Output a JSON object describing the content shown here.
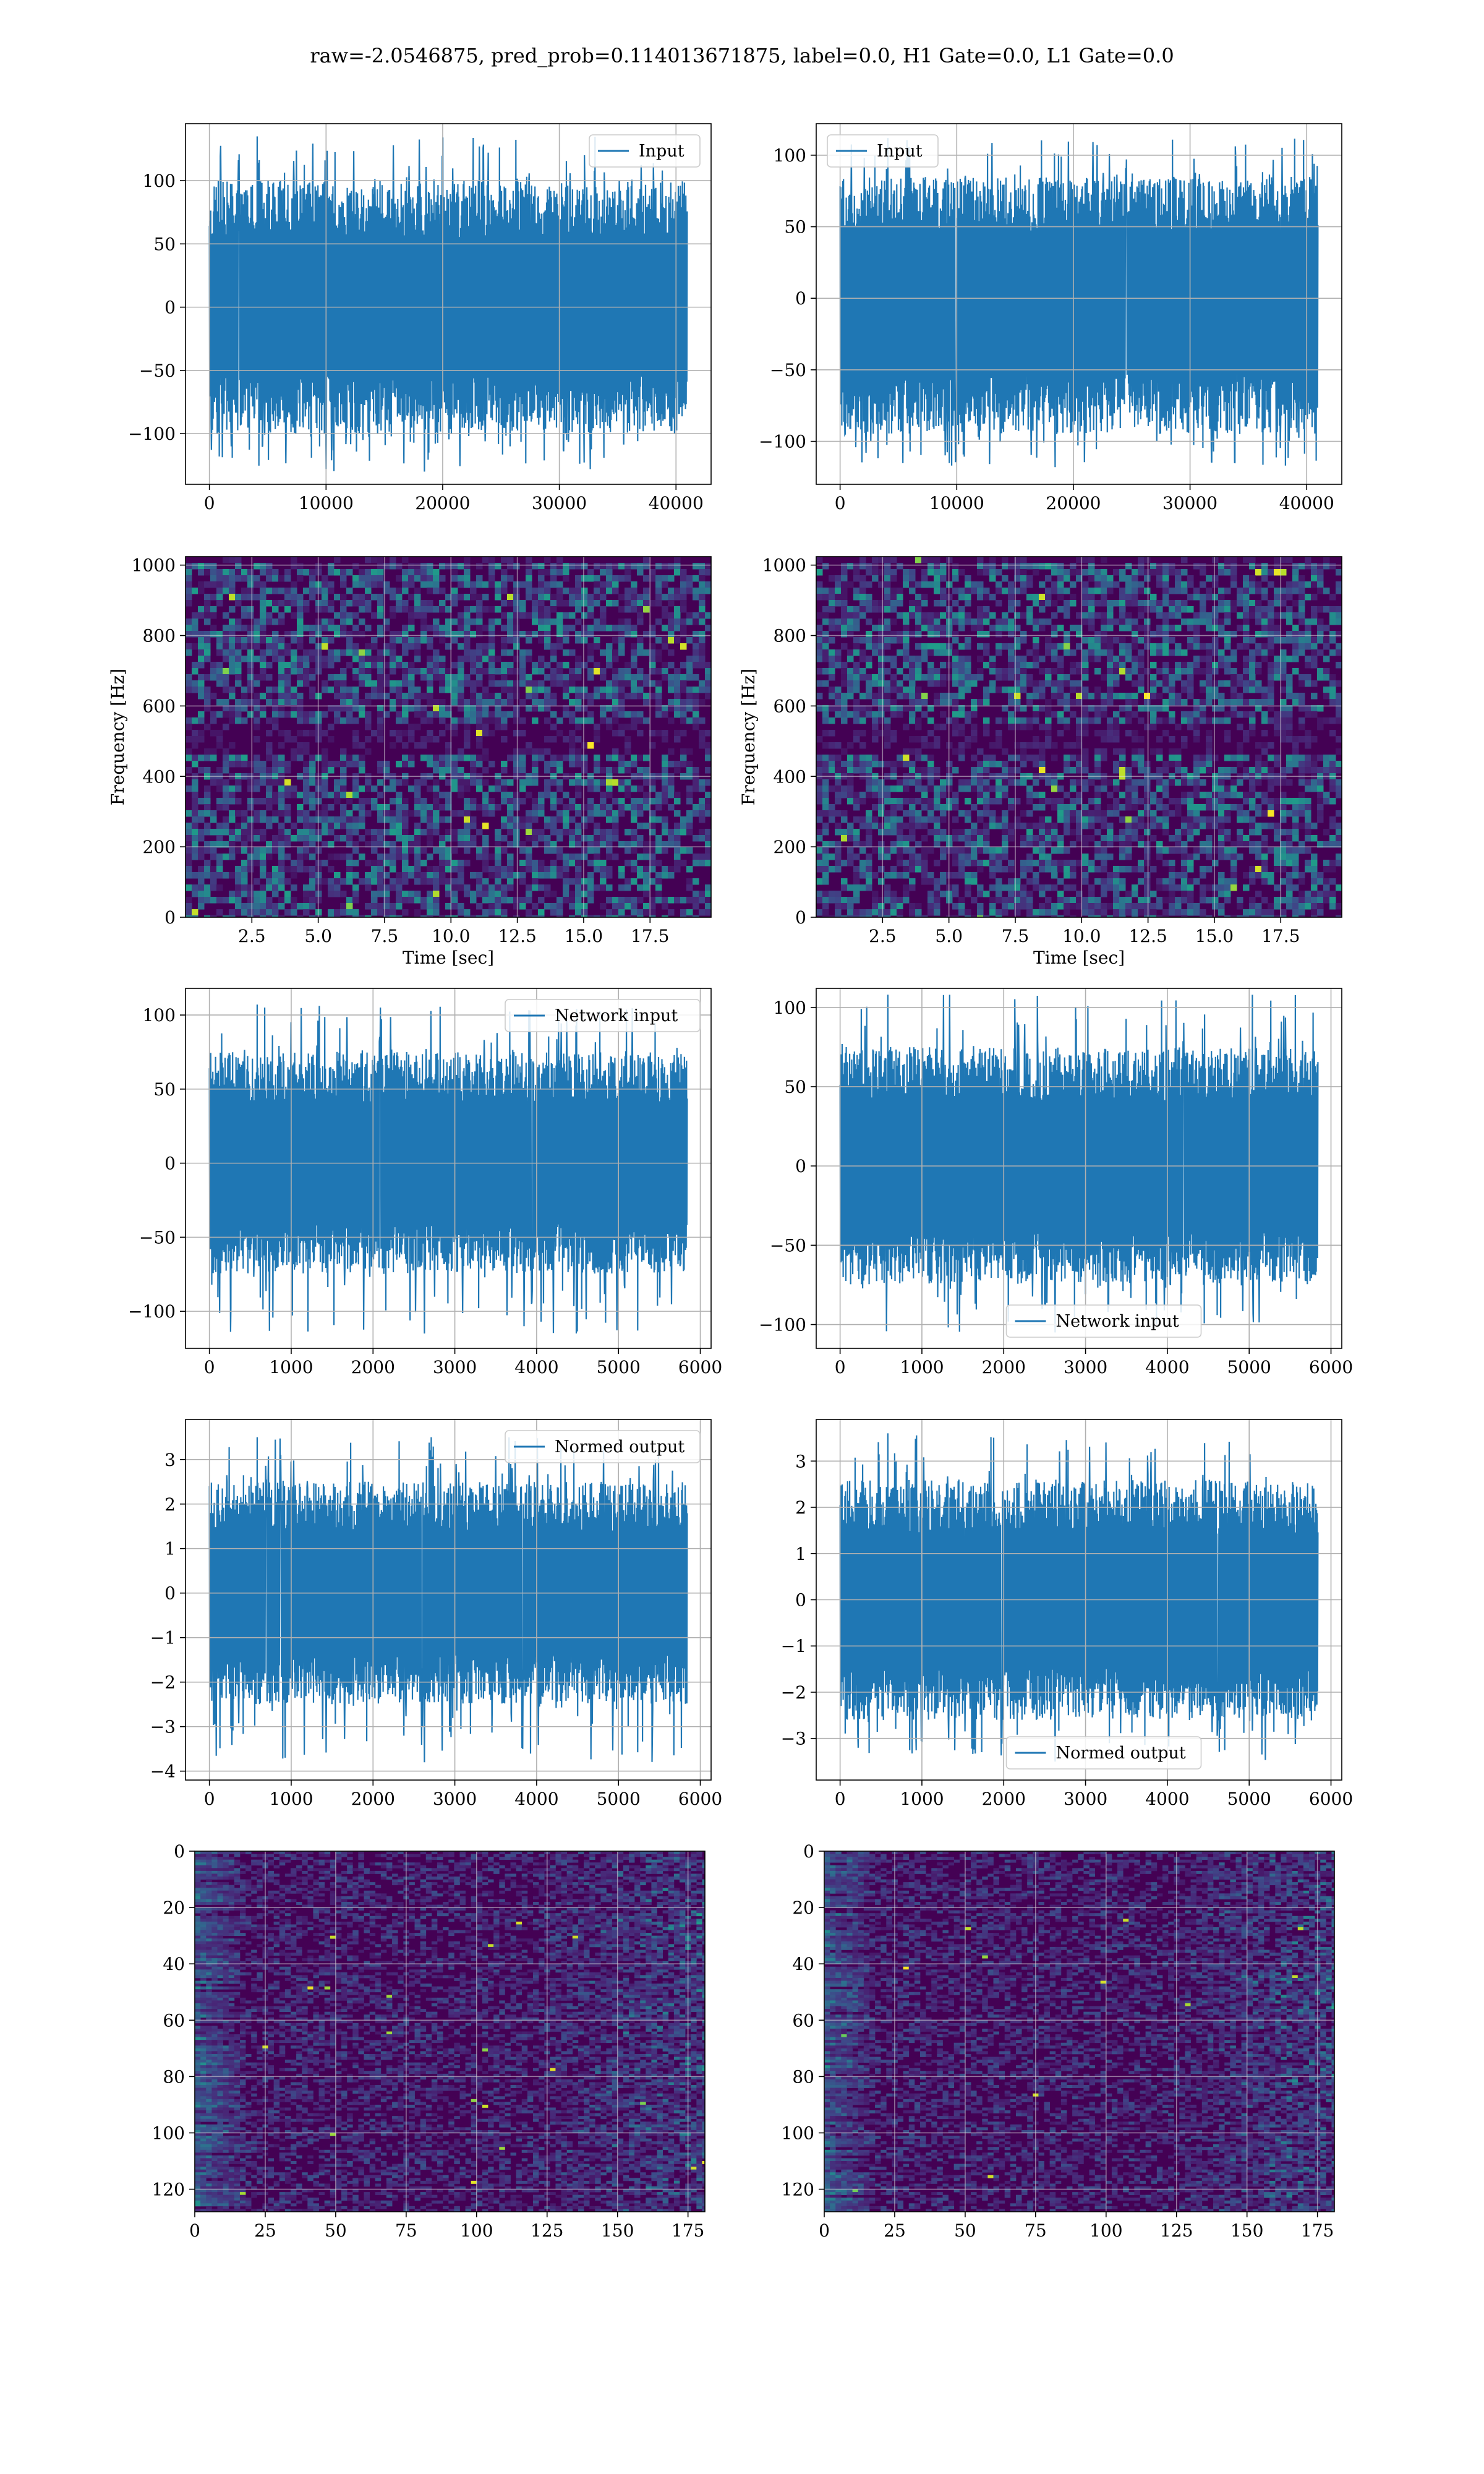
{
  "figure": {
    "suptitle": "raw=-2.0546875, pred_prob=0.114013671875, label=0.0, H1 Gate=0.0, L1 Gate=0.0"
  },
  "colors": {
    "series": "#1f77b4",
    "grid": "#b0b0b0",
    "viridis": [
      "#440154",
      "#482878",
      "#3e4989",
      "#31688e",
      "#26828e",
      "#1f9e89",
      "#35b779",
      "#6ece58",
      "#b5de2b",
      "#fde725"
    ]
  },
  "chart_data": [
    {
      "id": "input_h1",
      "type": "line",
      "series": [
        {
          "name": "Input"
        }
      ],
      "legend": "upper right",
      "x_range": [
        0,
        40960
      ],
      "xlim": [
        -2048,
        43008
      ],
      "y_envelope": {
        "lower": -100,
        "upper": 100,
        "min": -130,
        "max": 135
      },
      "ylim": [
        -140,
        145
      ],
      "xticks": [
        0,
        10000,
        20000,
        30000,
        40000
      ],
      "yticks": [
        -100,
        -50,
        0,
        50,
        100
      ],
      "grid": true
    },
    {
      "id": "input_l1",
      "type": "line",
      "series": [
        {
          "name": "Input"
        }
      ],
      "legend": "upper left",
      "x_range": [
        0,
        40960
      ],
      "xlim": [
        -2048,
        43008
      ],
      "y_envelope": {
        "lower": -95,
        "upper": 85,
        "min": -118,
        "max": 112
      },
      "ylim": [
        -130,
        122
      ],
      "xticks": [
        0,
        10000,
        20000,
        30000,
        40000
      ],
      "yticks": [
        -100,
        -50,
        0,
        50,
        100
      ],
      "grid": true
    },
    {
      "id": "spec_h1",
      "type": "heatmap",
      "colormap": "viridis",
      "xlabel": "Time [sec]",
      "ylabel": "Frequency [Hz]",
      "xlim": [
        0,
        19.8
      ],
      "ylim": [
        0,
        1024
      ],
      "xticks": [
        2.5,
        5.0,
        7.5,
        10.0,
        12.5,
        15.0,
        17.5
      ],
      "yticks": [
        0,
        200,
        400,
        600,
        800,
        1000
      ],
      "dark_band_hz": 500,
      "grid": true
    },
    {
      "id": "spec_l1",
      "type": "heatmap",
      "colormap": "viridis",
      "xlabel": "Time [sec]",
      "ylabel": "Frequency [Hz]",
      "xlim": [
        0,
        19.8
      ],
      "ylim": [
        0,
        1024
      ],
      "xticks": [
        2.5,
        5.0,
        7.5,
        10.0,
        12.5,
        15.0,
        17.5
      ],
      "yticks": [
        0,
        200,
        400,
        600,
        800,
        1000
      ],
      "dark_band_hz": 500,
      "grid": true
    },
    {
      "id": "net_h1",
      "type": "line",
      "series": [
        {
          "name": "Network input"
        }
      ],
      "legend": "upper right",
      "x_range": [
        0,
        5840
      ],
      "xlim": [
        -292,
        6132
      ],
      "y_envelope": {
        "lower": -75,
        "upper": 75,
        "min": -115,
        "max": 107
      },
      "ylim": [
        -125,
        118
      ],
      "xticks": [
        0,
        1000,
        2000,
        3000,
        4000,
        5000,
        6000
      ],
      "yticks": [
        -100,
        -50,
        0,
        50,
        100
      ],
      "grid": true
    },
    {
      "id": "net_l1",
      "type": "line",
      "series": [
        {
          "name": "Network input"
        }
      ],
      "legend": "lower center",
      "x_range": [
        0,
        5840
      ],
      "xlim": [
        -292,
        6132
      ],
      "y_envelope": {
        "lower": -75,
        "upper": 75,
        "min": -105,
        "max": 108
      },
      "ylim": [
        -115,
        112
      ],
      "xticks": [
        0,
        1000,
        2000,
        3000,
        4000,
        5000,
        6000
      ],
      "yticks": [
        -100,
        -50,
        0,
        50,
        100
      ],
      "grid": true
    },
    {
      "id": "norm_h1",
      "type": "line",
      "series": [
        {
          "name": "Normed output"
        }
      ],
      "legend": "upper right",
      "x_range": [
        0,
        5840
      ],
      "xlim": [
        -292,
        6132
      ],
      "y_envelope": {
        "lower": -2.5,
        "upper": 2.5,
        "min": -3.8,
        "max": 3.5
      },
      "ylim": [
        -4.2,
        3.9
      ],
      "xticks": [
        0,
        1000,
        2000,
        3000,
        4000,
        5000,
        6000
      ],
      "yticks": [
        -4,
        -3,
        -2,
        -1,
        0,
        1,
        2,
        3
      ],
      "grid": true
    },
    {
      "id": "norm_l1",
      "type": "line",
      "series": [
        {
          "name": "Normed output"
        }
      ],
      "legend": "lower center",
      "x_range": [
        0,
        5840
      ],
      "xlim": [
        -292,
        6132
      ],
      "y_envelope": {
        "lower": -2.6,
        "upper": 2.6,
        "min": -3.5,
        "max": 3.6
      },
      "ylim": [
        -3.9,
        3.9
      ],
      "xticks": [
        0,
        1000,
        2000,
        3000,
        4000,
        5000,
        6000
      ],
      "yticks": [
        -3,
        -2,
        -1,
        0,
        1,
        2,
        3
      ],
      "grid": true
    },
    {
      "id": "feat_h1",
      "type": "heatmap",
      "colormap": "viridis",
      "xlim": [
        0,
        181
      ],
      "ylim": [
        128,
        0
      ],
      "xticks": [
        0,
        25,
        50,
        75,
        100,
        125,
        150,
        175
      ],
      "yticks": [
        0,
        20,
        40,
        60,
        80,
        100,
        120
      ],
      "grid": true
    },
    {
      "id": "feat_l1",
      "type": "heatmap",
      "colormap": "viridis",
      "xlim": [
        0,
        181
      ],
      "ylim": [
        128,
        0
      ],
      "xticks": [
        0,
        25,
        50,
        75,
        100,
        125,
        150,
        175
      ],
      "yticks": [
        0,
        20,
        40,
        60,
        80,
        100,
        120
      ],
      "grid": true
    }
  ]
}
